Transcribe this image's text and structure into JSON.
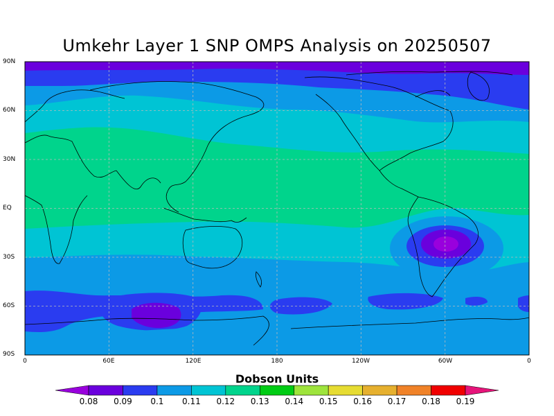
{
  "title": "Umkehr Layer 1 SNP OMPS Analysis on 20250507",
  "lat_labels": [
    "90N",
    "60N",
    "30N",
    "EQ",
    "30S",
    "60S",
    "90S"
  ],
  "lon_labels": [
    "0",
    "60E",
    "120E",
    "180",
    "120W",
    "60W",
    "0"
  ],
  "colorbar": {
    "title": "Dobson Units",
    "labels": [
      "0.08",
      "0.09",
      "0.1",
      "0.11",
      "0.12",
      "0.13",
      "0.14",
      "0.15",
      "0.16",
      "0.17",
      "0.18",
      "0.19"
    ],
    "colors": [
      "#9900dd",
      "#6a00dd",
      "#2a3cf0",
      "#0c9ae6",
      "#00c4d4",
      "#00d48c",
      "#00cc14",
      "#9ee43c",
      "#e6dc32",
      "#e6b02e",
      "#f08228",
      "#f00000",
      "#e6147a"
    ]
  },
  "map": {
    "projection": "cylindrical equidistant",
    "lon_range": [
      0,
      360
    ],
    "lat_range": [
      -90,
      90
    ],
    "grid": "dashed"
  }
}
